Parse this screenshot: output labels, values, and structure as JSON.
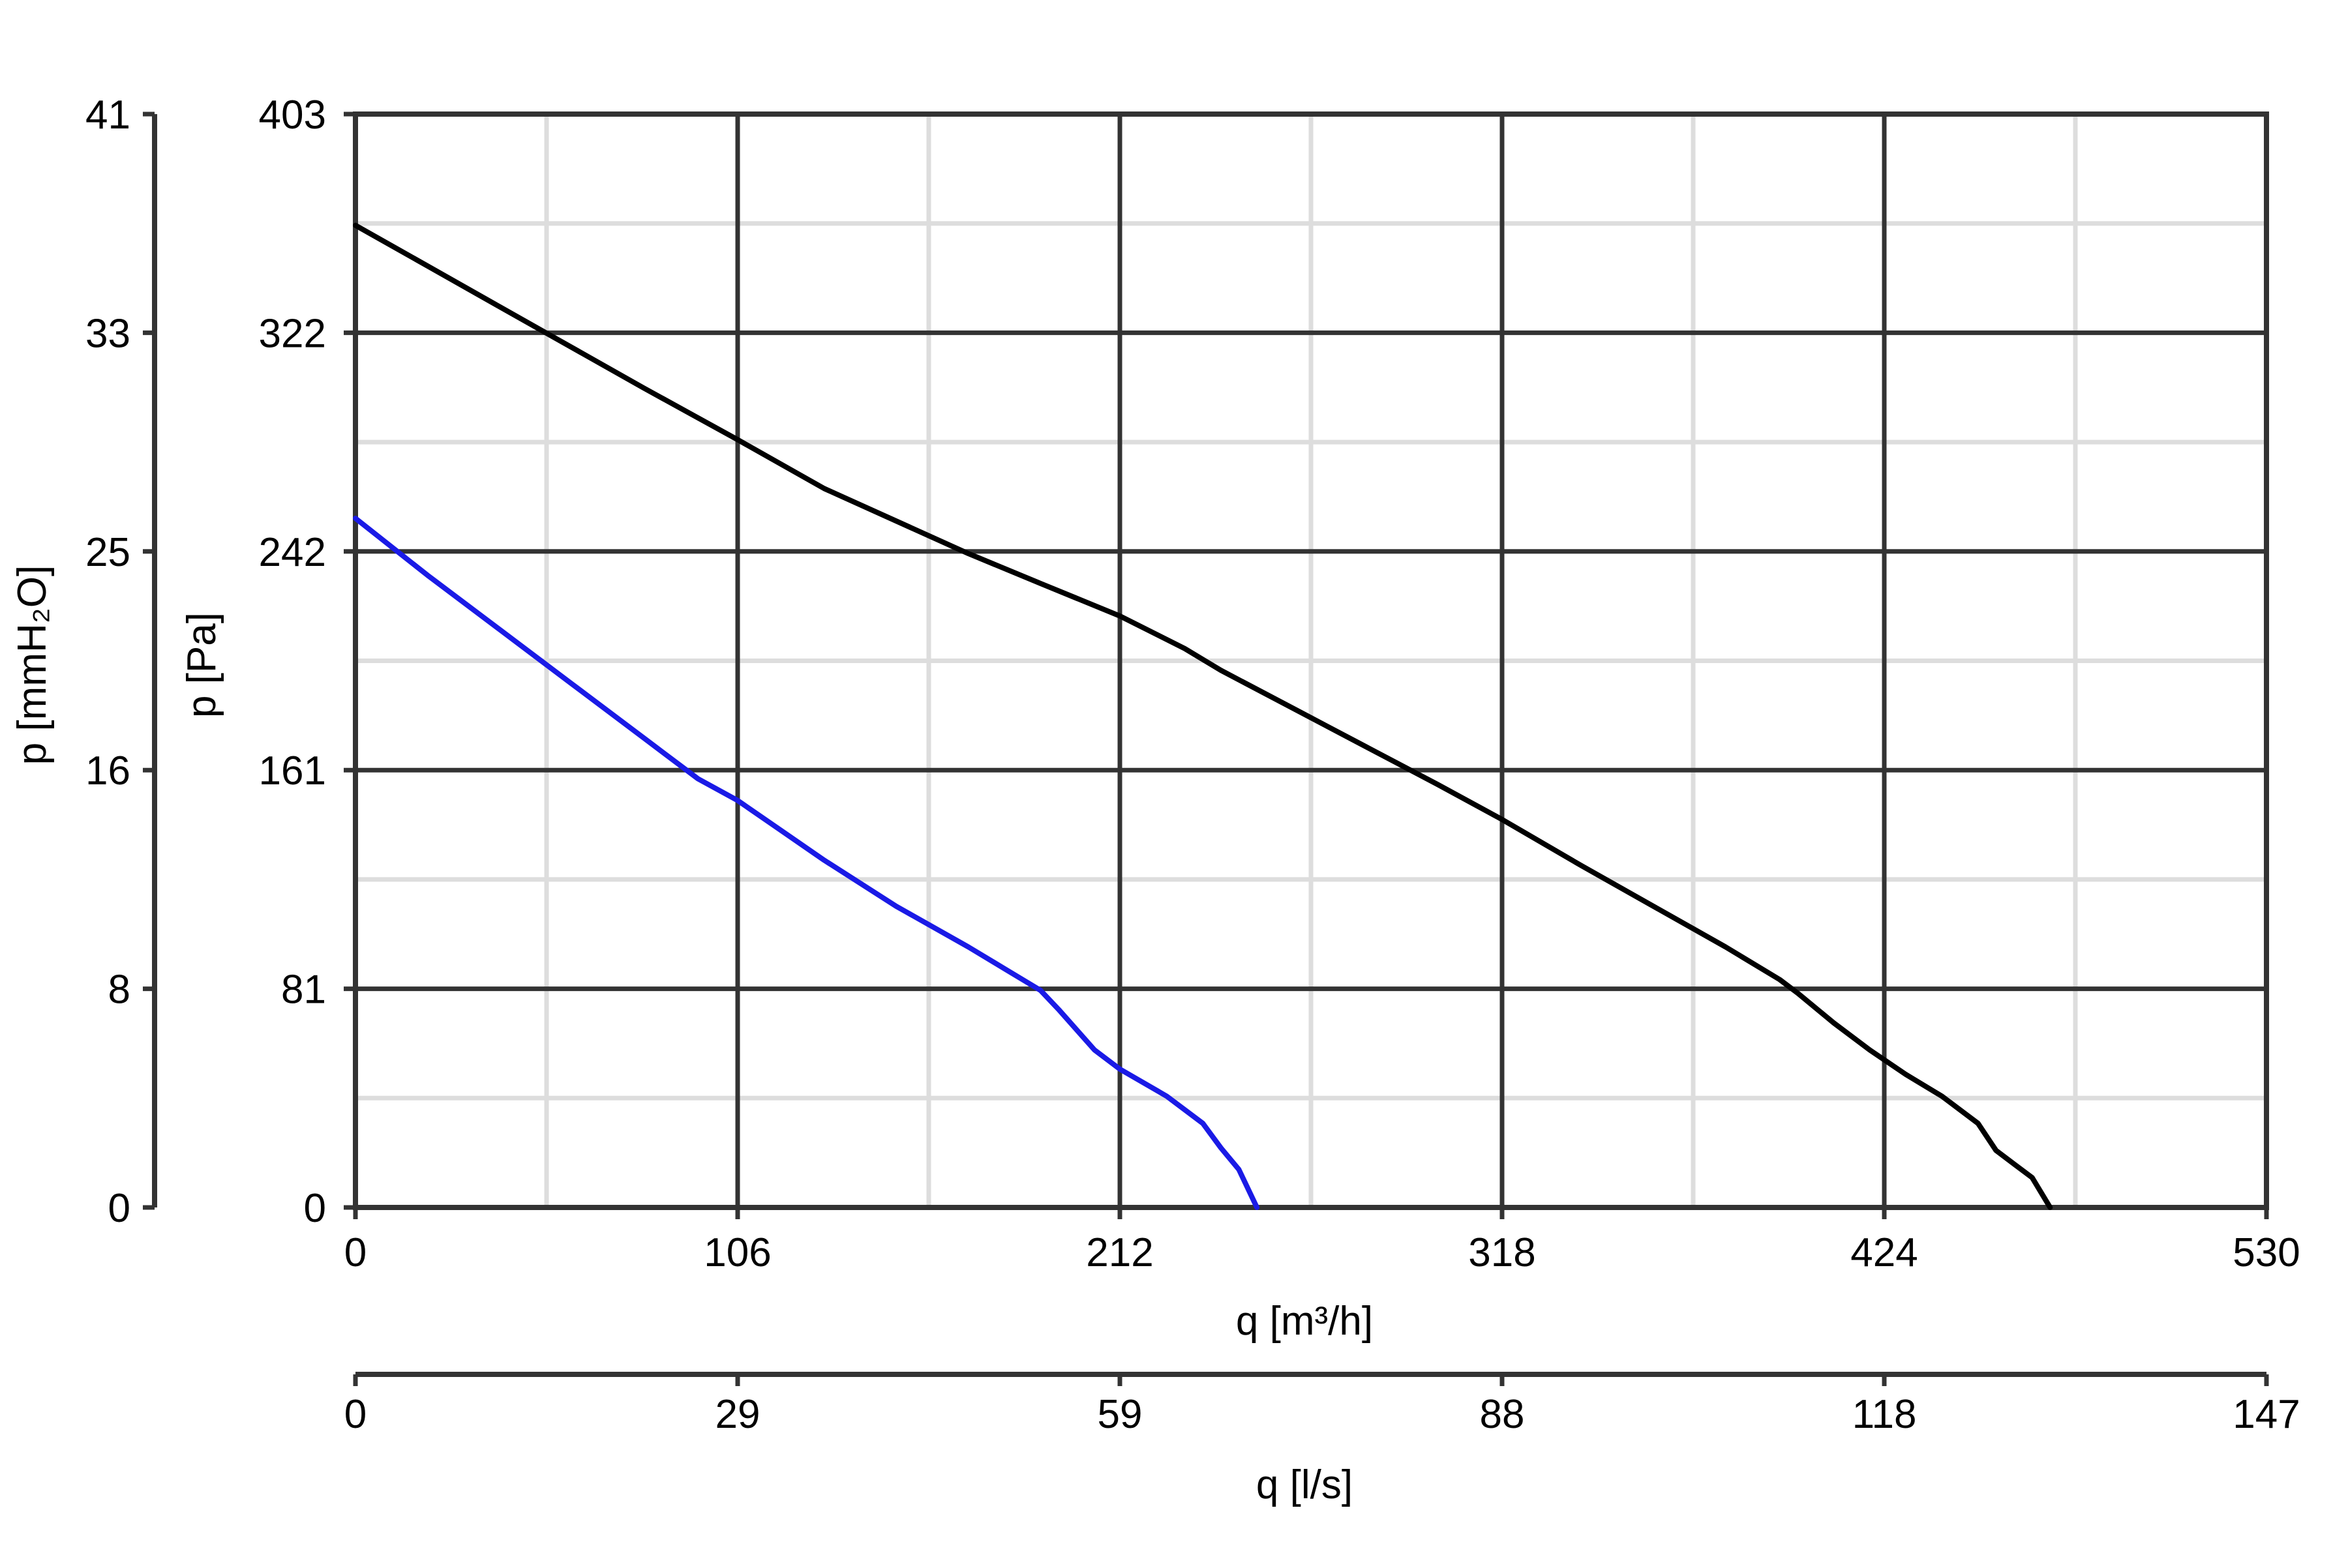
{
  "chart_data": {
    "type": "line",
    "title": "",
    "xlabel": "q [m³/h]",
    "ylabel": "p [Pa]",
    "secondary_xlabel": "q [l/s]",
    "secondary_ylabel": "p [mmH₂O]",
    "xlim": [
      0,
      530
    ],
    "ylim": [
      0,
      403
    ],
    "x_ticks": [
      "0",
      "106",
      "212",
      "318",
      "424",
      "530"
    ],
    "y_ticks": [
      "0",
      "81",
      "161",
      "242",
      "322",
      "403"
    ],
    "secondary_x_ticks": [
      "0",
      "29",
      "59",
      "88",
      "118",
      "147"
    ],
    "secondary_y_ticks": [
      "0",
      "8",
      "16",
      "25",
      "33",
      "41"
    ],
    "grid": true,
    "colors": {
      "major_grid": "#333333",
      "minor_grid": "#dddddd",
      "axis": "#333333"
    },
    "series": [
      {
        "color": "#000000",
        "x": [
          0,
          20,
          40,
          60,
          80,
          106,
          130,
          150,
          170,
          190,
          212,
          230,
          240,
          260,
          280,
          300,
          318,
          340,
          360,
          380,
          395,
          400,
          410,
          420,
          430,
          440,
          450,
          455,
          460,
          465,
          470
        ],
        "y": [
          362,
          347,
          332,
          317,
          302,
          283,
          265,
          253,
          241,
          230,
          218,
          206,
          198,
          184,
          170,
          156,
          143,
          126,
          111,
          96,
          84,
          79,
          68,
          58,
          49,
          41,
          31,
          21,
          16,
          11,
          0
        ]
      },
      {
        "color": "#1a1ae6",
        "x": [
          0,
          20,
          40,
          60,
          80,
          95,
          106,
          130,
          150,
          170,
          180,
          190,
          195,
          205,
          212,
          225,
          235,
          240,
          245,
          250
        ],
        "y": [
          254,
          233,
          213,
          193,
          173,
          158,
          150,
          128,
          111,
          96,
          88,
          80,
          73,
          58,
          51,
          41,
          31,
          22,
          14,
          0
        ]
      }
    ]
  }
}
